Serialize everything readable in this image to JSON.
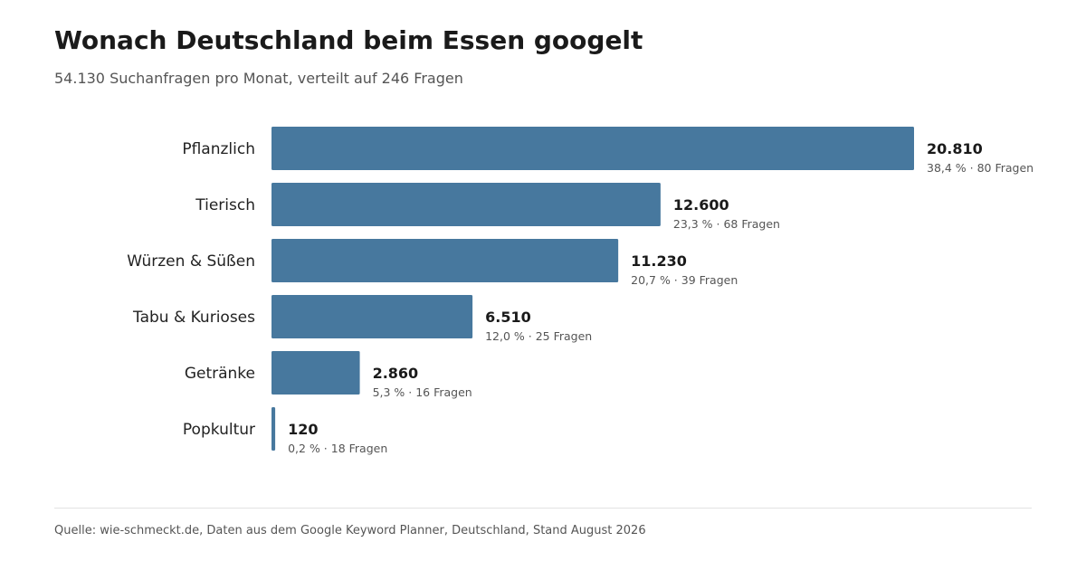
{
  "header": {
    "title": "Wonach Deutschland beim Essen googelt",
    "subtitle": "54.130 Suchanfragen pro Monat, verteilt auf 246 Fragen"
  },
  "footer": {
    "source": "Quelle: wie-schmeckt.de, Daten aus dem Google Keyword Planner, Deutschland, Stand August 2026"
  },
  "colors": {
    "bar": "#47789e",
    "value_text": "#1a1a1a",
    "detail_text": "#555555"
  },
  "chart_data": {
    "type": "bar",
    "orientation": "horizontal",
    "categories": [
      "Pflanzlich",
      "Tierisch",
      "Würzen & Süßen",
      "Tabu & Kurioses",
      "Getränke",
      "Popkultur"
    ],
    "values": [
      20810,
      12600,
      11230,
      6510,
      2860,
      120
    ],
    "value_labels": [
      "20.810",
      "12.600",
      "11.230",
      "6.510",
      "2.860",
      "120"
    ],
    "detail_labels": [
      "38,4 % · 80 Fragen",
      "23,3 % · 68 Fragen",
      "20,7 % · 39 Fragen",
      "12,0 % · 25 Fragen",
      "5,3 % · 16 Fragen",
      "0,2 % · 18 Fragen"
    ],
    "xlim": [
      0,
      20810
    ],
    "grid": false,
    "legend": "none"
  }
}
